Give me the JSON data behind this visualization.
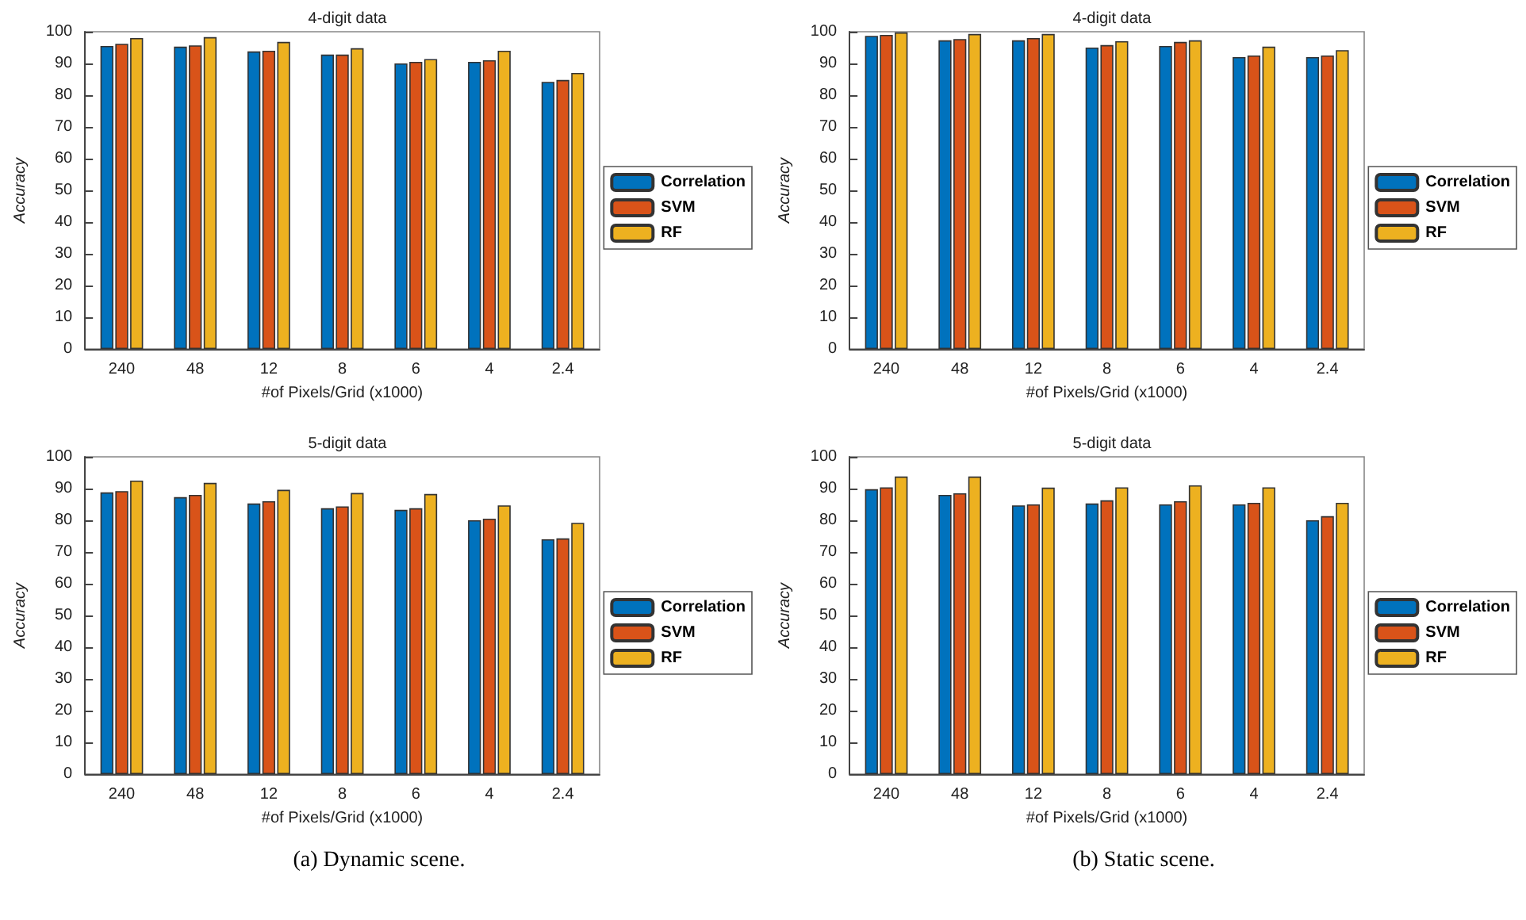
{
  "chart_data": [
    {
      "type": "bar",
      "title": "4-digit data",
      "xlabel": "#of Pixels/Grid (x1000)",
      "ylabel": "Accuracy",
      "categories": [
        "240",
        "48",
        "12",
        "8",
        "6",
        "4",
        "2.4"
      ],
      "series": [
        {
          "name": "Correlation",
          "color": "#0072bd",
          "values": [
            95.5,
            95.3,
            93.8,
            92.8,
            90,
            90.5,
            84.2
          ]
        },
        {
          "name": "SVM",
          "color": "#d95319",
          "values": [
            96.2,
            95.7,
            94,
            92.8,
            90.5,
            91,
            84.8
          ]
        },
        {
          "name": "RF",
          "color": "#edb120",
          "values": [
            98,
            98.3,
            96.8,
            94.8,
            91.4,
            94,
            87
          ]
        }
      ],
      "ylim": [
        0,
        100
      ],
      "yticks": [
        0,
        10,
        20,
        30,
        40,
        50,
        60,
        70,
        80,
        90,
        100
      ],
      "grid": false,
      "legend": "right"
    },
    {
      "type": "bar",
      "title": "4-digit data",
      "xlabel": "#of Pixels/Grid (x1000)",
      "ylabel": "Accuracy",
      "categories": [
        "240",
        "48",
        "12",
        "8",
        "6",
        "4",
        "2.4"
      ],
      "series": [
        {
          "name": "Correlation",
          "color": "#0072bd",
          "values": [
            98.7,
            97.3,
            97.3,
            95,
            95.5,
            92,
            92
          ]
        },
        {
          "name": "SVM",
          "color": "#d95319",
          "values": [
            99,
            97.7,
            98,
            95.8,
            96.8,
            92.5,
            92.5
          ]
        },
        {
          "name": "RF",
          "color": "#edb120",
          "values": [
            99.8,
            99.3,
            99.3,
            97,
            97.3,
            95.3,
            94.2
          ]
        }
      ],
      "ylim": [
        0,
        100
      ],
      "yticks": [
        0,
        10,
        20,
        30,
        40,
        50,
        60,
        70,
        80,
        90,
        100
      ],
      "grid": false,
      "legend": "right"
    },
    {
      "type": "bar",
      "title": "5-digit data",
      "xlabel": "#of Pixels/Grid (x1000)",
      "ylabel": "Accuracy",
      "categories": [
        "240",
        "48",
        "12",
        "8",
        "6",
        "4",
        "2.4"
      ],
      "series": [
        {
          "name": "Correlation",
          "color": "#0072bd",
          "values": [
            88.8,
            87.3,
            85.3,
            83.8,
            83.3,
            80,
            74
          ]
        },
        {
          "name": "SVM",
          "color": "#d95319",
          "values": [
            89.2,
            88,
            86,
            84.4,
            83.8,
            80.5,
            74.3
          ]
        },
        {
          "name": "RF",
          "color": "#edb120",
          "values": [
            92.5,
            91.8,
            89.6,
            88.6,
            88.3,
            84.7,
            79.2
          ]
        }
      ],
      "ylim": [
        0,
        100
      ],
      "yticks": [
        0,
        10,
        20,
        30,
        40,
        50,
        60,
        70,
        80,
        90,
        100
      ],
      "grid": false,
      "legend": "right",
      "annotations": [
        "(a) Dynamic scene."
      ]
    },
    {
      "type": "bar",
      "title": "5-digit data",
      "xlabel": "#of Pixels/Grid (x1000)",
      "ylabel": "Accuracy",
      "categories": [
        "240",
        "48",
        "12",
        "8",
        "6",
        "4",
        "2.4"
      ],
      "series": [
        {
          "name": "Correlation",
          "color": "#0072bd",
          "values": [
            89.8,
            88,
            84.7,
            85.3,
            85,
            85,
            80
          ]
        },
        {
          "name": "SVM",
          "color": "#d95319",
          "values": [
            90.4,
            88.5,
            85,
            86.3,
            86,
            85.5,
            81.3
          ]
        },
        {
          "name": "RF",
          "color": "#edb120",
          "values": [
            93.8,
            93.8,
            90.3,
            90.4,
            91,
            90.4,
            85.5
          ]
        }
      ],
      "ylim": [
        0,
        100
      ],
      "yticks": [
        0,
        10,
        20,
        30,
        40,
        50,
        60,
        70,
        80,
        90,
        100
      ],
      "grid": false,
      "legend": "right",
      "annotations": [
        "(b) Static scene."
      ]
    }
  ]
}
